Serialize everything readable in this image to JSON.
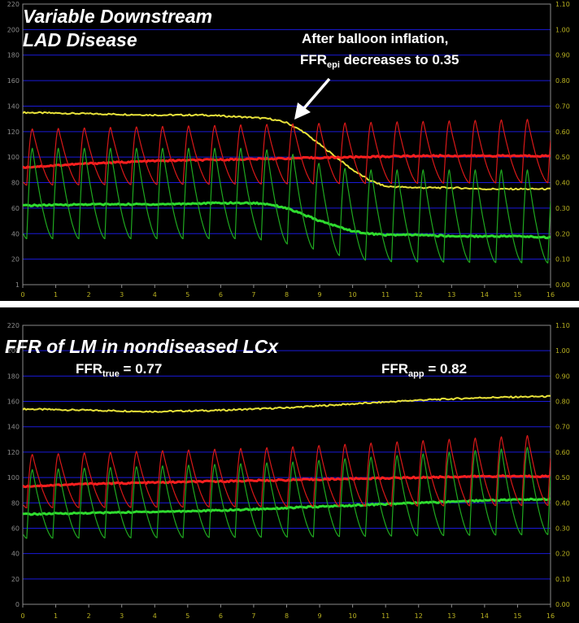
{
  "chart_data": [
    {
      "type": "line",
      "title_lines": [
        "Variable Downstream",
        "LAD Disease"
      ],
      "annotation": {
        "line1": "After balloon inflation,",
        "prefix": "FFR",
        "sub": "epi",
        "suffix": " decreases to 0.35"
      },
      "xlim": [
        0,
        16
      ],
      "x_ticks": [
        "0",
        "1",
        "2",
        "3",
        "4",
        "5",
        "6",
        "7",
        "8",
        "9",
        "10",
        "11",
        "12",
        "13",
        "14",
        "15",
        "16"
      ],
      "ylim": [
        0,
        220
      ],
      "y_ticks": [
        "1",
        "20",
        "40",
        "60",
        "80",
        "100",
        "120",
        "140",
        "160",
        "180",
        "200",
        "220"
      ],
      "y2lim": [
        0,
        1.1
      ],
      "y2_ticks": [
        "0.00",
        "0.10",
        "0.20",
        "0.30",
        "0.40",
        "0.50",
        "0.60",
        "0.70",
        "0.80",
        "0.90",
        "1.00",
        "1.10"
      ],
      "grid": true,
      "colors": {
        "yellow": "#e8e23a",
        "red_mean": "#ff1f1f",
        "red_phasic": "#d81818",
        "green_mean": "#2fdc2f",
        "green_phasic": "#1fa81f",
        "grid": "#1a1ad8",
        "frame": "#8a8a8a"
      },
      "series": [
        {
          "color": "yellow",
          "kind": "mean",
          "x": [
            0,
            2,
            4,
            5.5,
            7,
            7.5,
            8,
            8.5,
            9,
            9.5,
            10,
            10.5,
            11,
            12,
            13,
            14,
            15,
            16
          ],
          "y": [
            135,
            134,
            133,
            133,
            131,
            130,
            127,
            120,
            110,
            100,
            90,
            82,
            77,
            76,
            76,
            75,
            75,
            75
          ]
        },
        {
          "color": "red_mean",
          "kind": "mean",
          "x": [
            0,
            2,
            4,
            6,
            8,
            10,
            12,
            14,
            16
          ],
          "y": [
            92,
            95,
            97,
            98,
            99,
            100,
            101,
            101,
            101
          ]
        },
        {
          "color": "green_mean",
          "kind": "mean",
          "x": [
            0,
            2,
            4,
            6,
            7,
            7.5,
            8,
            8.5,
            9,
            9.5,
            10,
            10.5,
            11,
            12,
            13,
            14,
            15,
            16
          ],
          "y": [
            62,
            63,
            63,
            64,
            64,
            63,
            60,
            55,
            50,
            46,
            42,
            40,
            39,
            39,
            38,
            38,
            38,
            37
          ]
        },
        {
          "color": "red_phasic",
          "kind": "phasic",
          "beat_period": 0.79,
          "x": [
            0,
            16
          ],
          "sys": [
            122,
            130
          ],
          "dia": [
            78,
            80
          ]
        },
        {
          "color": "green_phasic",
          "kind": "phasic",
          "beat_period": 0.79,
          "x": [
            0,
            7,
            8,
            9,
            10,
            11,
            16
          ],
          "sys": [
            107,
            107,
            104,
            95,
            90,
            90,
            90
          ],
          "dia": [
            36,
            36,
            32,
            27,
            20,
            18,
            17
          ]
        }
      ]
    },
    {
      "type": "line",
      "title_lines": [
        "FFR of LM in nondiseased LCx"
      ],
      "annotation_left": {
        "prefix": "FFR",
        "sub": "true",
        "suffix": " = 0.77"
      },
      "annotation_right": {
        "prefix": "FFR",
        "sub": "app",
        "suffix": " = 0.82"
      },
      "xlim": [
        0,
        16
      ],
      "x_ticks": [
        "0",
        "1",
        "2",
        "3",
        "4",
        "5",
        "6",
        "7",
        "8",
        "9",
        "10",
        "11",
        "12",
        "13",
        "14",
        "15",
        "16"
      ],
      "ylim": [
        0,
        220
      ],
      "y_ticks": [
        "0",
        "20",
        "40",
        "60",
        "80",
        "100",
        "120",
        "140",
        "160",
        "180",
        "200",
        "220"
      ],
      "y2lim": [
        0,
        1.1
      ],
      "y2_ticks": [
        "0.00",
        "0.10",
        "0.20",
        "0.30",
        "0.40",
        "0.50",
        "0.60",
        "0.70",
        "0.80",
        "0.90",
        "1.00",
        "1.10"
      ],
      "grid": true,
      "colors": {
        "yellow": "#e8e23a",
        "red_mean": "#ff1f1f",
        "red_phasic": "#d81818",
        "green_mean": "#2fdc2f",
        "green_phasic": "#1fa81f",
        "grid": "#1a1ad8",
        "frame": "#8a8a8a"
      },
      "series": [
        {
          "color": "yellow",
          "kind": "mean",
          "x": [
            0,
            2,
            4,
            6,
            8,
            10,
            12,
            14,
            16
          ],
          "y": [
            154,
            153,
            152,
            153,
            155,
            158,
            161,
            163,
            164
          ]
        },
        {
          "color": "red_mean",
          "kind": "mean",
          "x": [
            0,
            2,
            4,
            6,
            8,
            10,
            12,
            14,
            16
          ],
          "y": [
            93,
            95,
            96,
            97,
            98,
            99,
            100,
            101,
            101
          ]
        },
        {
          "color": "green_mean",
          "kind": "mean",
          "x": [
            0,
            2,
            4,
            6,
            8,
            10,
            12,
            14,
            16
          ],
          "y": [
            71,
            72,
            73,
            74,
            76,
            78,
            80,
            82,
            83
          ]
        },
        {
          "color": "red_phasic",
          "kind": "phasic",
          "beat_period": 0.79,
          "x": [
            0,
            8,
            16
          ],
          "sys": [
            118,
            124,
            134
          ],
          "dia": [
            76,
            77,
            78
          ]
        },
        {
          "color": "green_phasic",
          "kind": "phasic",
          "beat_period": 0.79,
          "x": [
            0,
            8,
            16
          ],
          "sys": [
            106,
            112,
            125
          ],
          "dia": [
            52,
            53,
            55
          ]
        }
      ]
    }
  ]
}
